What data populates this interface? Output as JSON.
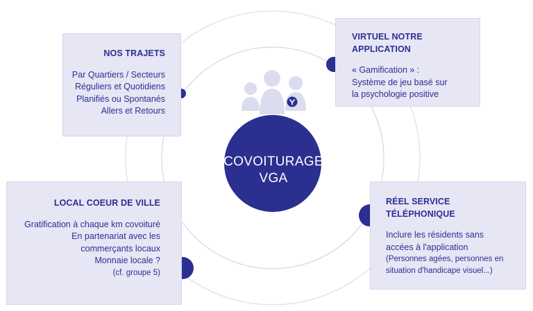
{
  "colors": {
    "accent": "#2b2f8f",
    "box_bg": "#e6e6f5",
    "ring": "#dadaf0",
    "people": "#dcdcef"
  },
  "center": {
    "line1": "COVOITURAGE",
    "line2": "VGA",
    "icon": "users-group-icon"
  },
  "trajets": {
    "title": "NOS TRAJETS",
    "lines": [
      "Par Quartiers / Secteurs",
      "Réguliers et Quotidiens",
      "Planifiés ou Spontanés",
      "Allers et Retours"
    ]
  },
  "virtuel": {
    "title_bold": "VIRTUEL",
    "title_rest": " NOTRE APPLICATION",
    "lines": [
      "« Gamification »  :",
      "Système de jeu basé sur",
      "la psychologie positive"
    ]
  },
  "local": {
    "title_bold": "LOCAL",
    "title_rest": " COEUR DE VILLE",
    "lines": [
      "Gratification à chaque km covoituré",
      "En partenariat avec les",
      "commerçants locaux",
      "Monnaie locale ?",
      "(cf. groupe 5)"
    ]
  },
  "reel": {
    "title_bold": "RÉEL",
    "title_rest": " SERVICE TÉLÉPHONIQUE",
    "lines": [
      "Inclure les résidents sans",
      "accées à l'application",
      "(Personnes agées, personnes en",
      "situation d'handicape visuel...)"
    ]
  }
}
